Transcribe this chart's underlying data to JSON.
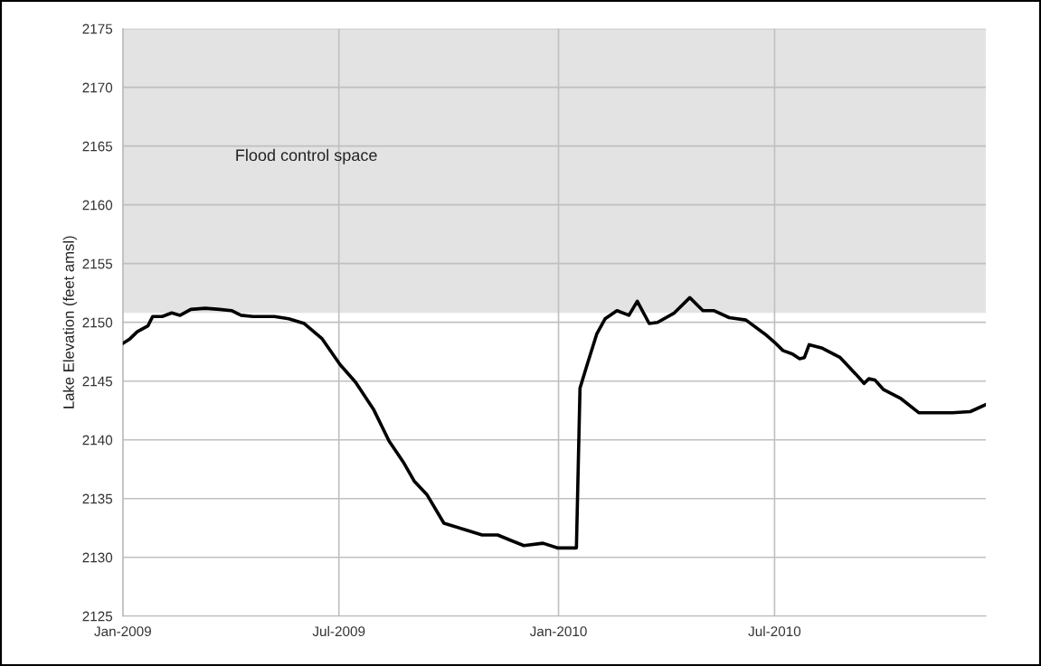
{
  "chart_data": {
    "type": "line",
    "ylabel": "Lake Elevation (feet amsl)",
    "x": [
      "2009-01-01",
      "2009-01-07",
      "2009-01-13",
      "2009-01-22",
      "2009-01-26",
      "2009-02-03",
      "2009-02-11",
      "2009-02-18",
      "2009-02-27",
      "2009-03-11",
      "2009-03-23",
      "2009-04-02",
      "2009-04-10",
      "2009-04-20",
      "2009-05-08",
      "2009-05-20",
      "2009-06-02",
      "2009-06-17",
      "2009-07-02",
      "2009-07-15",
      "2009-07-30",
      "2009-08-12",
      "2009-08-24",
      "2009-09-02",
      "2009-09-13",
      "2009-09-27",
      "2009-10-13",
      "2009-10-29",
      "2009-11-11",
      "2009-11-23",
      "2009-12-03",
      "2009-12-19",
      "2009-12-31",
      "2010-01-16",
      "2010-01-19",
      "2010-01-25",
      "2010-02-02",
      "2010-02-09",
      "2010-02-19",
      "2010-03-01",
      "2010-03-08",
      "2010-03-18",
      "2010-03-25",
      "2010-04-08",
      "2010-04-21",
      "2010-05-02",
      "2010-05-11",
      "2010-05-24",
      "2010-06-07",
      "2010-06-23",
      "2010-07-01",
      "2010-07-08",
      "2010-07-16",
      "2010-07-22",
      "2010-07-26",
      "2010-07-30",
      "2010-08-10",
      "2010-08-25",
      "2010-09-07",
      "2010-09-14",
      "2010-09-18",
      "2010-09-23",
      "2010-09-30",
      "2010-10-15",
      "2010-10-30",
      "2010-11-27",
      "2010-12-12",
      "2010-12-25"
    ],
    "series": [
      {
        "color": "#000000",
        "values": [
          2148.2,
          2148.6,
          2149.2,
          2149.7,
          2150.5,
          2150.5,
          2150.8,
          2150.6,
          2151.1,
          2151.2,
          2151.1,
          2151.0,
          2150.6,
          2150.5,
          2150.5,
          2150.3,
          2149.9,
          2148.6,
          2146.4,
          2144.9,
          2142.6,
          2139.9,
          2138.1,
          2136.5,
          2135.3,
          2132.9,
          2132.4,
          2131.9,
          2131.9,
          2131.4,
          2131.0,
          2131.2,
          2130.8,
          2130.8,
          2144.4,
          2146.4,
          2149.0,
          2150.3,
          2151.0,
          2150.6,
          2151.8,
          2149.9,
          2150.0,
          2150.8,
          2152.1,
          2151.0,
          2151.0,
          2150.4,
          2150.2,
          2149.0,
          2148.3,
          2147.6,
          2147.3,
          2146.9,
          2147.0,
          2148.1,
          2147.8,
          2147.0,
          2145.6,
          2144.8,
          2145.2,
          2145.1,
          2144.3,
          2143.5,
          2142.3,
          2142.3,
          2142.4,
          2143.0
        ]
      }
    ],
    "xlim": [
      "2009-01-01",
      "2010-12-25"
    ],
    "xticks": [
      {
        "value": "2009-01-01",
        "label": "Jan-2009"
      },
      {
        "value": "2009-07-01",
        "label": "Jul-2009"
      },
      {
        "value": "2010-01-01",
        "label": "Jan-2010"
      },
      {
        "value": "2010-07-01",
        "label": "Jul-2010"
      }
    ],
    "ylim": [
      2125,
      2175
    ],
    "yticks": [
      2125,
      2130,
      2135,
      2140,
      2145,
      2150,
      2155,
      2160,
      2165,
      2170,
      2175
    ],
    "bands": [
      {
        "axis": "y",
        "from": 2150.8,
        "to": 2175,
        "label": "Flood control space",
        "color": "#e3e3e3"
      }
    ],
    "grid": true,
    "legend": false,
    "marker": "none",
    "line_style": "solid"
  }
}
